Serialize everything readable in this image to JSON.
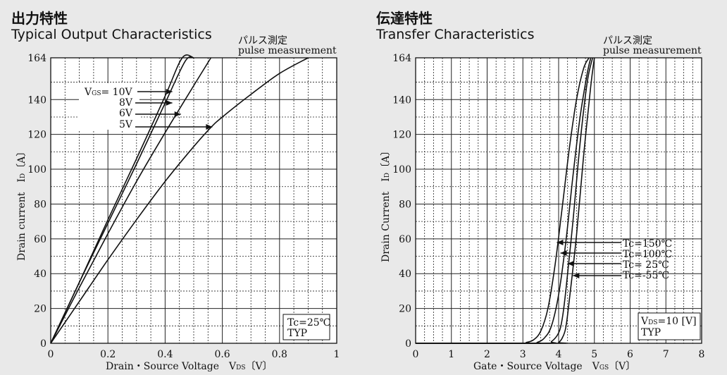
{
  "left": {
    "title_jp": "出力特性",
    "title_en": "Typical Output Characteristics",
    "note_jp": "パルス測定",
    "note_en": "pulse measurement",
    "xlabel": "Drain・Source Voltage　V",
    "xlabel_sub": "DS",
    "xlabel_unit": "〔V〕",
    "ylabel": "Drain current　I",
    "ylabel_sub": "D",
    "ylabel_unit": "〔A〕",
    "box_line1": "Tc=25℃",
    "box_line2": "TYP",
    "legend_prefix": "V",
    "legend_sub": "GS",
    "legend_labels": [
      "= 10V",
      "8V",
      "6V",
      "5V"
    ]
  },
  "right": {
    "title_jp": "伝達特性",
    "title_en": "Transfer Characteristics",
    "note_jp": "パルス測定",
    "note_en": "pulse measurement",
    "xlabel": "Gate・Source Voltage　V",
    "xlabel_sub": "GS",
    "xlabel_unit": "〔V〕",
    "ylabel": "Drain Current　I",
    "ylabel_sub": "D",
    "ylabel_unit": "〔A〕",
    "box_line1_prefix": "V",
    "box_line1_sub": "DS",
    "box_line1_rest": "=10 [V]",
    "box_line2": "TYP",
    "legend_labels": [
      "Tc=150℃",
      "Tc=100℃",
      "Tc= 25℃",
      "Tc=-55℃"
    ]
  },
  "chart_data": [
    {
      "type": "line",
      "title": "Typical Output Characteristics",
      "xlabel": "Drain・Source Voltage VDS〔V〕",
      "ylabel": "Drain current ID〔A〕",
      "xlim": [
        0,
        1
      ],
      "ylim": [
        0,
        164
      ],
      "xticks": [
        0,
        0.2,
        0.4,
        0.6,
        0.8,
        1
      ],
      "xtick_labels": [
        "0",
        "0.2",
        "0.4",
        "0.6",
        "0.8",
        "1"
      ],
      "yticks": [
        0,
        20,
        40,
        60,
        80,
        100,
        120,
        140,
        164
      ],
      "grid": true,
      "series": [
        {
          "name": "VGS= 10V",
          "x": [
            0,
            0.1,
            0.2,
            0.3,
            0.4,
            0.46,
            0.5
          ],
          "y": [
            0,
            35,
            71,
            106,
            142,
            164,
            164
          ]
        },
        {
          "name": "8V",
          "x": [
            0,
            0.1,
            0.2,
            0.3,
            0.4,
            0.47,
            0.5
          ],
          "y": [
            0,
            35,
            69,
            103,
            138,
            162,
            164
          ]
        },
        {
          "name": "6V",
          "x": [
            0,
            0.1,
            0.2,
            0.3,
            0.4,
            0.5,
            0.56
          ],
          "y": [
            0,
            32,
            63,
            93,
            121,
            148,
            164
          ]
        },
        {
          "name": "5V",
          "x": [
            0,
            0.1,
            0.2,
            0.3,
            0.4,
            0.5,
            0.56,
            0.6,
            0.7,
            0.8,
            0.9
          ],
          "y": [
            0,
            24,
            48,
            71,
            93,
            113,
            124,
            130,
            143,
            155,
            164
          ]
        }
      ]
    },
    {
      "type": "line",
      "title": "Transfer Characteristics",
      "xlabel": "Gate・Source Voltage VGS〔V〕",
      "ylabel": "Drain Current ID〔A〕",
      "xlim": [
        0,
        8
      ],
      "ylim": [
        0,
        164
      ],
      "xticks": [
        0,
        1,
        2,
        3,
        4,
        5,
        6,
        7,
        8
      ],
      "yticks": [
        0,
        20,
        40,
        60,
        80,
        100,
        120,
        140,
        164
      ],
      "grid": true,
      "series": [
        {
          "name": "Tc=150℃",
          "x": [
            0,
            2.9,
            3.1,
            3.3,
            3.5,
            3.7,
            3.9,
            4.1,
            4.3,
            4.5,
            4.7,
            4.85
          ],
          "y": [
            0,
            0,
            0.5,
            2,
            7,
            20,
            45,
            78,
            112,
            140,
            158,
            164
          ]
        },
        {
          "name": "Tc=100℃",
          "x": [
            0,
            3.2,
            3.4,
            3.6,
            3.8,
            4.0,
            4.2,
            4.4,
            4.6,
            4.8,
            4.9
          ],
          "y": [
            0,
            0,
            0.5,
            3,
            10,
            28,
            58,
            96,
            130,
            155,
            164
          ]
        },
        {
          "name": "Tc= 25℃",
          "x": [
            0,
            3.6,
            3.8,
            4.0,
            4.1,
            4.2,
            4.4,
            4.6,
            4.8,
            4.95
          ],
          "y": [
            0,
            0,
            1,
            6,
            14,
            30,
            70,
            115,
            150,
            164
          ]
        },
        {
          "name": "Tc=-55℃",
          "x": [
            0,
            3.9,
            4.0,
            4.1,
            4.2,
            4.3,
            4.5,
            4.7,
            4.9,
            5.0
          ],
          "y": [
            0,
            0,
            0.5,
            3,
            9,
            25,
            62,
            108,
            148,
            164
          ]
        }
      ]
    }
  ]
}
